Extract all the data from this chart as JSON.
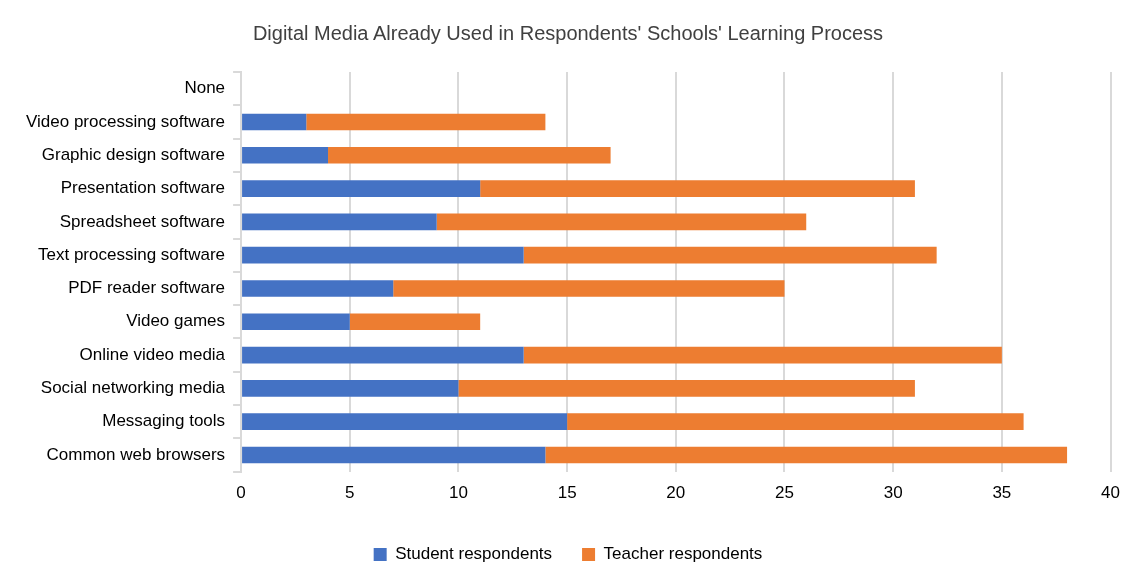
{
  "chart_data": {
    "type": "bar",
    "orientation": "horizontal",
    "stacked": true,
    "title": "Digital Media Already Used in Respondents' Schools' Learning Process",
    "categories": [
      "None",
      "Video processing software",
      "Graphic design software",
      "Presentation software",
      "Spreadsheet software",
      "Text processing software",
      "PDF reader software",
      "Video games",
      "Online video media",
      "Social networking media",
      "Messaging tools",
      "Common web browsers"
    ],
    "series": [
      {
        "name": "Student respondents",
        "color": "#4472c4",
        "values": [
          0,
          3,
          4,
          11,
          9,
          13,
          7,
          5,
          13,
          10,
          15,
          14
        ]
      },
      {
        "name": "Teacher respondents",
        "color": "#ed7d31",
        "values": [
          0,
          11,
          13,
          20,
          17,
          19,
          18,
          6,
          22,
          21,
          21,
          24
        ]
      }
    ],
    "xlim": [
      0,
      40
    ],
    "xticks": [
      0,
      5,
      10,
      15,
      20,
      25,
      30,
      35,
      40
    ],
    "grid": "x",
    "legend": "bottom"
  }
}
